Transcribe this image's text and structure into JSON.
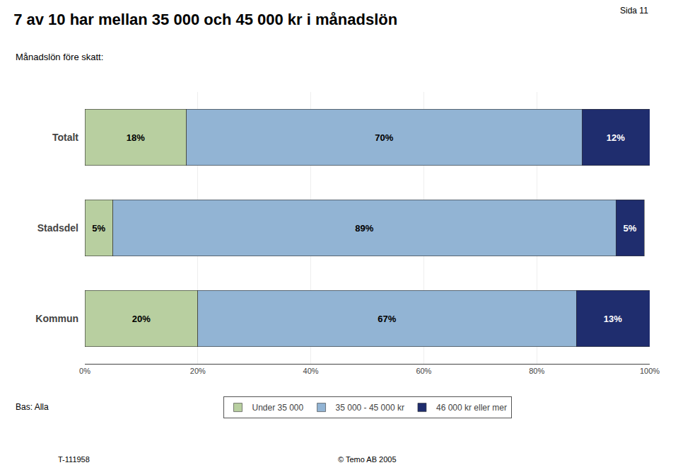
{
  "chart_data": {
    "type": "bar",
    "orientation": "horizontal",
    "stacked": true,
    "data_labels": true,
    "grid": true,
    "legend": "bottom",
    "title": "7 av 10 har mellan 35 000 och 45 000 kr i månadslön",
    "subtitle": "Månadslön före skatt:",
    "annotations": [
      "Sida 11",
      "Bas: Alla",
      "T-111958",
      "© Temo AB 2005"
    ],
    "categories": [
      "Kommun",
      "Stadsdel",
      "Totalt"
    ],
    "series": [
      {
        "name": "Under 35 000",
        "color": "#b8cfa0",
        "values": [
          20,
          5,
          18
        ],
        "value_labels": [
          "20%",
          "5%",
          "18%"
        ]
      },
      {
        "name": "35 000 - 45 000 kr",
        "color": "#92b4d4",
        "values": [
          67,
          89,
          70
        ],
        "value_labels": [
          "67%",
          "89%",
          "70%"
        ]
      },
      {
        "name": "46 000 kr eller mer",
        "color": "#1f2d6e",
        "values": [
          13,
          5,
          12
        ],
        "value_labels": [
          "13%",
          "5%",
          "12%"
        ]
      }
    ],
    "xlim": [
      0,
      100
    ],
    "xticks": [
      {
        "value": 0,
        "label": "0%"
      },
      {
        "value": 20,
        "label": "20%"
      },
      {
        "value": 40,
        "label": "40%"
      },
      {
        "value": 60,
        "label": "60%"
      },
      {
        "value": 80,
        "label": "80%"
      },
      {
        "value": 100,
        "label": "100%"
      }
    ]
  }
}
